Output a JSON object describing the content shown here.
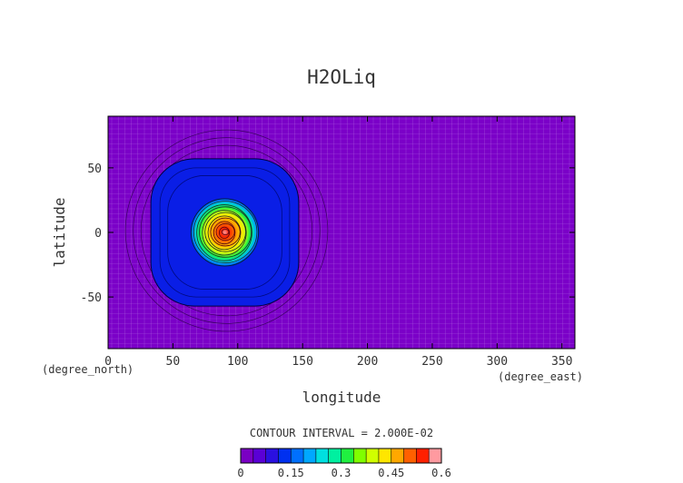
{
  "chart_data": {
    "type": "heatmap",
    "title": "H2OLiq",
    "xlabel": "longitude",
    "ylabel": "latitude",
    "x_unit": "(degree_east)",
    "y_unit": "(degree_north)",
    "xlim": [
      0,
      360
    ],
    "ylim": [
      -90,
      90
    ],
    "x_ticks": [
      0,
      50,
      100,
      150,
      200,
      250,
      300,
      350
    ],
    "y_ticks": [
      -50,
      0,
      50
    ],
    "contour_interval_text": "CONTOUR INTERVAL = 2.000E-02",
    "field": {
      "center_lon": 90,
      "center_lat": 0,
      "peak_value": 0.6,
      "background_value": 0.0,
      "blue_plateau_value": 0.08,
      "blue_plateau_radius_deg": 57,
      "core_radius_deg": 26
    },
    "colorbar": {
      "min": 0,
      "max": 0.6,
      "tick_labels": [
        "0",
        "0.15",
        "0.3",
        "0.45",
        "0.6"
      ],
      "tick_values": [
        0,
        0.15,
        0.3,
        0.45,
        0.6
      ],
      "colors": [
        "#7a00c4",
        "#5a00d6",
        "#2a10e0",
        "#0030f0",
        "#0070ff",
        "#00a8ff",
        "#00e0e0",
        "#00f0a0",
        "#20f040",
        "#80ff00",
        "#d0ff00",
        "#ffe600",
        "#ffa800",
        "#ff6000",
        "#ff2000",
        "#ff9aa0"
      ]
    }
  }
}
